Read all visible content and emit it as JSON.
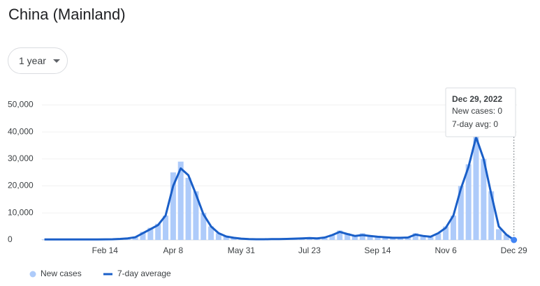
{
  "header": {
    "title": "China (Mainland)",
    "range_button": "1 year"
  },
  "chart_data": {
    "type": "bar-line",
    "categories": [
      null,
      null,
      null,
      null,
      null,
      null,
      null,
      null,
      "Feb 14",
      null,
      null,
      null,
      null,
      null,
      null,
      null,
      null,
      "Apr 8",
      null,
      null,
      null,
      null,
      null,
      null,
      null,
      null,
      "May 31",
      null,
      null,
      null,
      null,
      null,
      null,
      null,
      null,
      "Jul 23",
      null,
      null,
      null,
      null,
      null,
      null,
      null,
      null,
      "Sep 14",
      null,
      null,
      null,
      null,
      null,
      null,
      null,
      null,
      "Nov 6",
      null,
      null,
      null,
      null,
      null,
      null,
      null,
      null,
      "Dec 29"
    ],
    "series": [
      {
        "name": "New cases",
        "kind": "bar",
        "color": "#aecbfa",
        "values": [
          200,
          150,
          180,
          200,
          250,
          200,
          180,
          200,
          200,
          250,
          400,
          600,
          1000,
          3000,
          4500,
          6000,
          9000,
          25000,
          29000,
          23000,
          18000,
          10000,
          5000,
          2500,
          1500,
          800,
          500,
          300,
          250,
          250,
          300,
          300,
          400,
          500,
          600,
          800,
          600,
          1000,
          2000,
          3500,
          2500,
          1500,
          2500,
          1500,
          1200,
          1000,
          800,
          700,
          900,
          2500,
          1500,
          1000,
          2500,
          5000,
          9000,
          20000,
          28000,
          40000,
          30000,
          18000,
          4000,
          2000,
          0
        ]
      },
      {
        "name": "7-day average",
        "kind": "line",
        "color": "#1a5fc8",
        "values": [
          200,
          200,
          200,
          200,
          200,
          200,
          200,
          200,
          220,
          260,
          400,
          600,
          1000,
          2500,
          4000,
          5500,
          9000,
          20000,
          26500,
          24000,
          17000,
          9500,
          5000,
          2500,
          1300,
          800,
          500,
          300,
          250,
          250,
          300,
          300,
          400,
          500,
          600,
          700,
          600,
          900,
          1800,
          3000,
          2200,
          1500,
          1800,
          1500,
          1200,
          1000,
          800,
          800,
          900,
          2000,
          1500,
          1200,
          2500,
          4500,
          9000,
          19000,
          27000,
          38000,
          30000,
          17000,
          5000,
          2000,
          0
        ]
      }
    ],
    "ylim": [
      0,
      55000
    ],
    "yticks": [
      0,
      {
        "value": 10000,
        "label": "10,000"
      },
      {
        "value": 20000,
        "label": "20,000"
      },
      {
        "value": 30000,
        "label": "30,000"
      },
      {
        "value": 40000,
        "label": "40,000"
      },
      {
        "value": 50000,
        "label": "50,000"
      }
    ],
    "grid": true,
    "tooltip": {
      "date": "Dec 29, 2022",
      "lines": [
        "New cases: 0",
        "7-day avg: 0"
      ]
    }
  }
}
